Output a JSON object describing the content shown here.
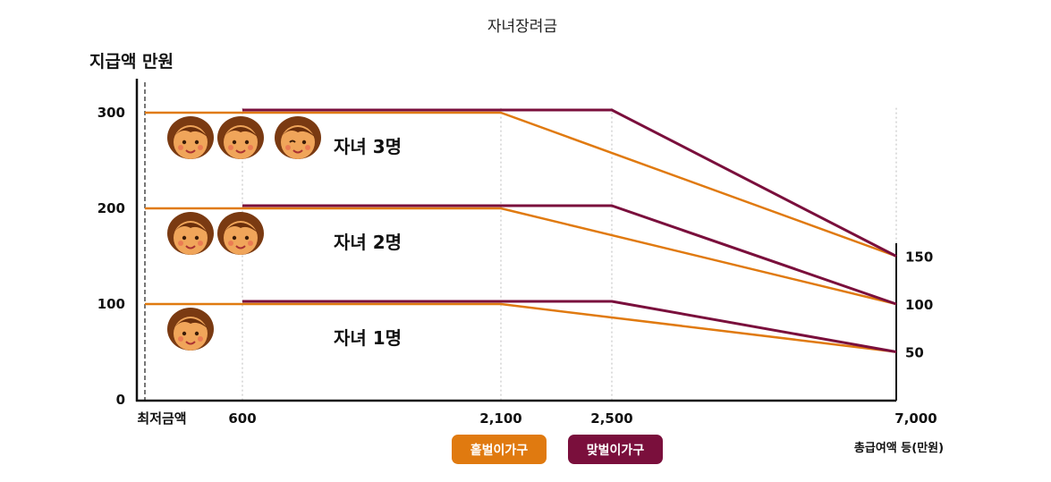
{
  "chart_data": {
    "type": "line",
    "title": "자녀장려금",
    "ylabel": "지급액 만원",
    "xlabel": "총급여액 등(만원)",
    "x_ticks": [
      "최저금액",
      "600",
      "2,100",
      "2,500",
      "7,000"
    ],
    "y_ticks": [
      "0",
      "100",
      "200",
      "300"
    ],
    "right_ticks": [
      "150",
      "100",
      "50"
    ],
    "ylim": [
      0,
      340
    ],
    "groups": [
      {
        "label": "자녀 3명",
        "max": 300,
        "min": 150,
        "faces": 3
      },
      {
        "label": "자녀 2명",
        "max": 200,
        "min": 100,
        "faces": 2
      },
      {
        "label": "자녀 1명",
        "max": 100,
        "min": 50,
        "faces": 1
      }
    ],
    "series": [
      {
        "name": "홑벌이가구",
        "color": "#e07a10",
        "x_start": "최저금액",
        "x_flat_end": "2,100",
        "x_end": "7,000"
      },
      {
        "name": "맞벌이가구",
        "color": "#7a0f3c",
        "x_start": "600",
        "x_flat_end": "2,500",
        "x_end": "7,000"
      }
    ],
    "legend_position": "bottom-center"
  }
}
